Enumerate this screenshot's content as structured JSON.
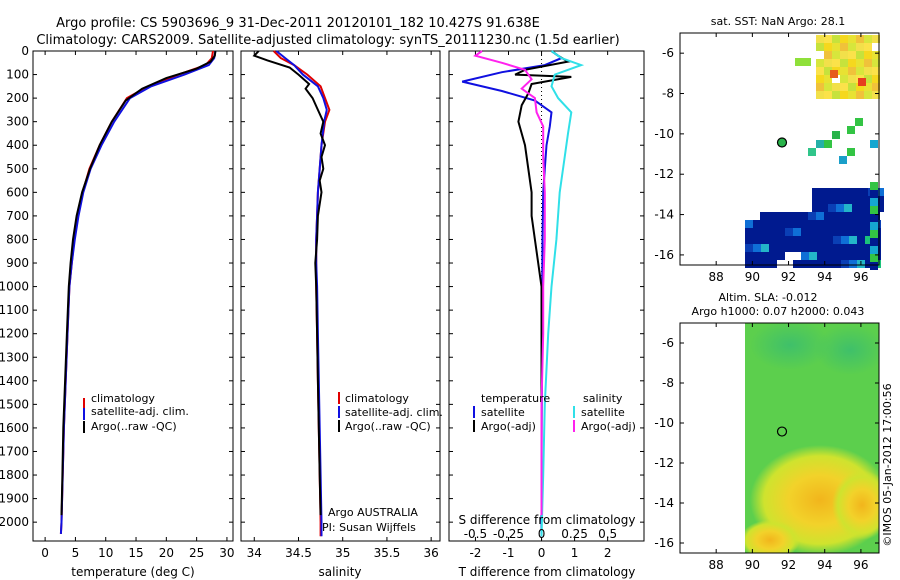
{
  "header": {
    "line1": "Argo profile: CS 5903696_9 31-Dec-2011 20120101_182 10.427S 91.638E",
    "line2": "Climatology: CARS2009. Satellite-adjusted climatology: synTS_20111230.nc (1.5d earlier)"
  },
  "colors": {
    "climatology": "#e00000",
    "satellite": "#1010e0",
    "argo": "#000000",
    "sat_salinity": "#30e0e8",
    "argo_salinity_adj": "#ff22ee"
  },
  "chart_data": [
    {
      "type": "line",
      "id": "temperature",
      "xlabel": "temperature (deg C)",
      "ylabel": "",
      "xlim": [
        -2,
        31
      ],
      "ylim": [
        2080,
        0
      ],
      "xticks": [
        0,
        5,
        10,
        15,
        20,
        25,
        30
      ],
      "yticks": [
        0,
        100,
        200,
        300,
        400,
        500,
        600,
        700,
        800,
        900,
        1000,
        1100,
        1200,
        1300,
        1400,
        1500,
        1600,
        1700,
        1800,
        1900,
        2000
      ],
      "legend": [
        "climatology",
        "satellite-adj. clim.",
        "Argo(..raw -QC)"
      ],
      "series": [
        {
          "name": "climatology",
          "color": "#e00000",
          "points": [
            [
              27.7,
              0
            ],
            [
              27.5,
              30
            ],
            [
              26.5,
              60
            ],
            [
              22,
              100
            ],
            [
              17,
              150
            ],
            [
              13.5,
              200
            ],
            [
              11,
              300
            ],
            [
              9,
              400
            ],
            [
              7.3,
              500
            ],
            [
              6.2,
              600
            ],
            [
              5.4,
              700
            ],
            [
              4.8,
              800
            ],
            [
              4.4,
              900
            ],
            [
              4.0,
              1000
            ],
            [
              3.7,
              1200
            ],
            [
              3.4,
              1400
            ],
            [
              3.1,
              1600
            ],
            [
              2.9,
              1800
            ],
            [
              2.7,
              2000
            ],
            [
              2.6,
              2050
            ]
          ]
        },
        {
          "name": "satellite",
          "color": "#1010e0",
          "points": [
            [
              28.1,
              0
            ],
            [
              27.9,
              30
            ],
            [
              27,
              60
            ],
            [
              23,
              100
            ],
            [
              17.5,
              150
            ],
            [
              14,
              200
            ],
            [
              11.4,
              300
            ],
            [
              9.3,
              400
            ],
            [
              7.5,
              500
            ],
            [
              6.3,
              600
            ],
            [
              5.5,
              700
            ],
            [
              4.9,
              800
            ],
            [
              4.4,
              900
            ],
            [
              4.0,
              1000
            ],
            [
              3.7,
              1200
            ],
            [
              3.4,
              1400
            ],
            [
              3.1,
              1600
            ],
            [
              2.9,
              1800
            ],
            [
              2.7,
              2000
            ],
            [
              2.6,
              2050
            ]
          ]
        },
        {
          "name": "argo",
          "color": "#000000",
          "points": [
            [
              28.1,
              0
            ],
            [
              28.0,
              20
            ],
            [
              27.3,
              45
            ],
            [
              25,
              75
            ],
            [
              20,
              115
            ],
            [
              16,
              160
            ],
            [
              13.3,
              210
            ],
            [
              11,
              300
            ],
            [
              9,
              400
            ],
            [
              7.4,
              500
            ],
            [
              6.1,
              600
            ],
            [
              5.2,
              700
            ],
            [
              4.6,
              800
            ],
            [
              4.2,
              900
            ],
            [
              3.9,
              1000
            ],
            [
              3.6,
              1200
            ],
            [
              3.3,
              1400
            ],
            [
              3.0,
              1600
            ],
            [
              2.85,
              1800
            ],
            [
              2.7,
              1970
            ]
          ]
        }
      ]
    },
    {
      "type": "line",
      "id": "salinity",
      "xlabel": "salinity",
      "xlim": [
        33.85,
        36.1
      ],
      "ylim": [
        2080,
        0
      ],
      "xticks": [
        34,
        34.5,
        35,
        35.5,
        36
      ],
      "legend": [
        "climatology",
        "satellite-adj. clim.",
        "Argo(..raw -QC)"
      ],
      "annotation": [
        "Argo AUSTRALIA",
        "PI: Susan Wijffels"
      ],
      "series": [
        {
          "name": "climatology",
          "color": "#e00000",
          "points": [
            [
              34.22,
              0
            ],
            [
              34.3,
              30
            ],
            [
              34.45,
              60
            ],
            [
              34.6,
              100
            ],
            [
              34.75,
              150
            ],
            [
              34.8,
              200
            ],
            [
              34.85,
              250
            ],
            [
              34.8,
              300
            ],
            [
              34.76,
              400
            ],
            [
              34.74,
              500
            ],
            [
              34.72,
              600
            ],
            [
              34.71,
              700
            ],
            [
              34.7,
              800
            ],
            [
              34.7,
              900
            ],
            [
              34.7,
              1000
            ],
            [
              34.71,
              1200
            ],
            [
              34.72,
              1400
            ],
            [
              34.73,
              1600
            ],
            [
              34.74,
              1800
            ],
            [
              34.75,
              2000
            ],
            [
              34.75,
              2060
            ]
          ]
        },
        {
          "name": "satellite",
          "color": "#1010e0",
          "points": [
            [
              34.25,
              0
            ],
            [
              34.35,
              30
            ],
            [
              34.45,
              60
            ],
            [
              34.55,
              100
            ],
            [
              34.72,
              150
            ],
            [
              34.78,
              200
            ],
            [
              34.82,
              250
            ],
            [
              34.79,
              300
            ],
            [
              34.76,
              400
            ],
            [
              34.74,
              500
            ],
            [
              34.72,
              600
            ],
            [
              34.71,
              700
            ],
            [
              34.7,
              800
            ],
            [
              34.7,
              900
            ],
            [
              34.71,
              1000
            ],
            [
              34.72,
              1200
            ],
            [
              34.73,
              1400
            ],
            [
              34.74,
              1600
            ],
            [
              34.75,
              1800
            ],
            [
              34.76,
              2000
            ],
            [
              34.76,
              2060
            ]
          ]
        },
        {
          "name": "argo",
          "color": "#000000",
          "points": [
            [
              34.05,
              0
            ],
            [
              34.0,
              20
            ],
            [
              34.15,
              40
            ],
            [
              34.4,
              70
            ],
            [
              34.5,
              100
            ],
            [
              34.62,
              140
            ],
            [
              34.58,
              160
            ],
            [
              34.66,
              200
            ],
            [
              34.72,
              250
            ],
            [
              34.78,
              300
            ],
            [
              34.75,
              350
            ],
            [
              34.8,
              400
            ],
            [
              34.76,
              450
            ],
            [
              34.78,
              500
            ],
            [
              34.74,
              550
            ],
            [
              34.76,
              600
            ],
            [
              34.72,
              700
            ],
            [
              34.71,
              800
            ],
            [
              34.69,
              900
            ],
            [
              34.7,
              1000
            ],
            [
              34.71,
              1200
            ],
            [
              34.72,
              1400
            ],
            [
              34.73,
              1600
            ],
            [
              34.74,
              1800
            ],
            [
              34.75,
              1970
            ]
          ]
        }
      ]
    },
    {
      "type": "line",
      "id": "differences",
      "xlabel": "T difference from climatology",
      "xlabel_top": "S difference from climatology",
      "xlim": [
        -2.8,
        3.1
      ],
      "ylim": [
        2080,
        0
      ],
      "xticks": [
        -2,
        -1,
        0,
        1,
        2
      ],
      "xticks_S": [
        "-0.5",
        "-0.25",
        "0",
        "0.25",
        "0.5"
      ],
      "xticks_S_pos": [
        -2,
        -1,
        0,
        1,
        2
      ],
      "legend_temperature_title": "temperature",
      "legend_salinity_title": "salinity",
      "legend_temperature": [
        "satellite",
        "Argo(-adj)"
      ],
      "legend_salinity": [
        "satellite",
        "Argo(-adj)"
      ],
      "series": [
        {
          "name": "temperature satellite",
          "color": "#1010e0",
          "points": [
            [
              0.3,
              0
            ],
            [
              0.6,
              30
            ],
            [
              0.1,
              60
            ],
            [
              -1.2,
              90
            ],
            [
              -2.4,
              130
            ],
            [
              -1.2,
              170
            ],
            [
              -0.2,
              210
            ],
            [
              0.3,
              260
            ],
            [
              0.25,
              320
            ],
            [
              0.15,
              400
            ],
            [
              0.1,
              500
            ],
            [
              0.05,
              600
            ],
            [
              0.03,
              800
            ],
            [
              0.02,
              1000
            ],
            [
              0.01,
              1400
            ],
            [
              0.0,
              1800
            ],
            [
              0.0,
              2060
            ]
          ]
        },
        {
          "name": "temperature argo",
          "color": "#000000",
          "points": [
            [
              0.3,
              0
            ],
            [
              0.5,
              20
            ],
            [
              0.8,
              45
            ],
            [
              -0.5,
              80
            ],
            [
              -0.8,
              100
            ],
            [
              0.9,
              110
            ],
            [
              -0.3,
              140
            ],
            [
              -0.4,
              180
            ],
            [
              -0.6,
              230
            ],
            [
              -0.7,
              300
            ],
            [
              -0.5,
              400
            ],
            [
              -0.4,
              500
            ],
            [
              -0.3,
              600
            ],
            [
              -0.3,
              700
            ],
            [
              -0.2,
              800
            ],
            [
              -0.1,
              900
            ],
            [
              0.0,
              1000
            ],
            [
              0.0,
              1200
            ],
            [
              0.0,
              1400
            ],
            [
              0.0,
              1600
            ],
            [
              0.0,
              1800
            ],
            [
              0.0,
              1970
            ]
          ]
        },
        {
          "name": "salinity satellite",
          "color": "#30e0e8",
          "points": [
            [
              0.3,
              0
            ],
            [
              0.6,
              30
            ],
            [
              1.2,
              60
            ],
            [
              0.4,
              100
            ],
            [
              0.3,
              150
            ],
            [
              0.5,
              200
            ],
            [
              0.9,
              260
            ],
            [
              0.8,
              350
            ],
            [
              0.7,
              450
            ],
            [
              0.55,
              600
            ],
            [
              0.45,
              800
            ],
            [
              0.3,
              1000
            ],
            [
              0.2,
              1200
            ],
            [
              0.1,
              1500
            ],
            [
              0.05,
              1800
            ],
            [
              0.0,
              2060
            ]
          ]
        },
        {
          "name": "salinity argo",
          "color": "#ff22ee",
          "points": [
            [
              -1.8,
              0
            ],
            [
              -2.0,
              20
            ],
            [
              -1.2,
              50
            ],
            [
              -0.5,
              80
            ],
            [
              -0.3,
              120
            ],
            [
              -0.6,
              160
            ],
            [
              -0.2,
              200
            ],
            [
              -0.15,
              260
            ],
            [
              0.05,
              320
            ],
            [
              0.05,
              450
            ],
            [
              0.1,
              600
            ],
            [
              0.1,
              800
            ],
            [
              0.05,
              1000
            ],
            [
              0.05,
              1200
            ],
            [
              0.0,
              1500
            ],
            [
              0.0,
              1800
            ],
            [
              0.0,
              1970
            ]
          ]
        }
      ]
    },
    {
      "type": "heatmap",
      "id": "sst_map",
      "title": "sat. SST: NaN Argo: 28.1",
      "xlim": [
        86,
        97
      ],
      "ylim": [
        -16.5,
        -5
      ],
      "xticks": [
        88,
        90,
        92,
        94,
        96
      ],
      "yticks": [
        -6,
        -8,
        -10,
        -12,
        -14,
        -16
      ],
      "marker": [
        91.638,
        -10.427
      ]
    },
    {
      "type": "heatmap",
      "id": "sla_map",
      "title": "Altim. SLA: -0.012",
      "subtitle": "Argo h1000: 0.07 h2000: 0.043",
      "xlim": [
        86,
        97
      ],
      "ylim": [
        -16.5,
        -5
      ],
      "xticks": [
        88,
        90,
        92,
        94,
        96
      ],
      "yticks": [
        -6,
        -8,
        -10,
        -12,
        -14,
        -16
      ],
      "marker": [
        91.638,
        -10.427
      ]
    }
  ],
  "footer": {
    "stamp": "©IMOS 05-Jan-2012 17:00:56"
  }
}
